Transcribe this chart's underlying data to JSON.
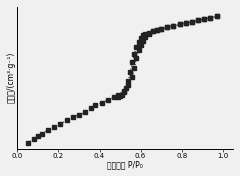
{
  "xlabel": "相对压力 P/P₀",
  "ylabel": "吸附量/(cm³·g⁻¹)",
  "xlim": [
    0.0,
    1.05
  ],
  "ylim": [
    0.0,
    1.05
  ],
  "xticks": [
    0.0,
    0.2,
    0.4,
    0.6,
    0.8,
    1.0
  ],
  "xtick_labels": [
    "0.0",
    "0.2",
    "0.4",
    "0.6",
    "0.8",
    "1.0"
  ],
  "adsorption_x": [
    0.05,
    0.08,
    0.1,
    0.12,
    0.15,
    0.18,
    0.21,
    0.24,
    0.27,
    0.3,
    0.33,
    0.36,
    0.38,
    0.41,
    0.44,
    0.47,
    0.49,
    0.52,
    0.54,
    0.56,
    0.57,
    0.58,
    0.59,
    0.6,
    0.61,
    0.62,
    0.64,
    0.66,
    0.68,
    0.7,
    0.73,
    0.76,
    0.79,
    0.82,
    0.85,
    0.88,
    0.91,
    0.94,
    0.97
  ],
  "adsorption_y": [
    0.04,
    0.07,
    0.09,
    0.11,
    0.14,
    0.16,
    0.18,
    0.21,
    0.23,
    0.25,
    0.27,
    0.3,
    0.32,
    0.34,
    0.36,
    0.38,
    0.4,
    0.43,
    0.47,
    0.53,
    0.6,
    0.67,
    0.73,
    0.77,
    0.8,
    0.83,
    0.85,
    0.87,
    0.88,
    0.89,
    0.9,
    0.91,
    0.92,
    0.93,
    0.94,
    0.95,
    0.96,
    0.97,
    0.98
  ],
  "desorption_x": [
    0.97,
    0.94,
    0.91,
    0.88,
    0.85,
    0.82,
    0.79,
    0.76,
    0.73,
    0.7,
    0.68,
    0.66,
    0.64,
    0.62,
    0.61,
    0.6,
    0.59,
    0.58,
    0.57,
    0.56,
    0.55,
    0.54,
    0.53,
    0.52,
    0.51,
    0.5,
    0.49
  ],
  "desorption_y": [
    0.98,
    0.97,
    0.96,
    0.95,
    0.94,
    0.93,
    0.92,
    0.91,
    0.9,
    0.89,
    0.88,
    0.87,
    0.86,
    0.85,
    0.84,
    0.82,
    0.79,
    0.75,
    0.7,
    0.64,
    0.57,
    0.5,
    0.45,
    0.42,
    0.4,
    0.39,
    0.38
  ],
  "marker": "s",
  "markersize": 2.5,
  "linestyle": ":",
  "linewidth": 0.8,
  "color": "#222222",
  "bg_color": "#f0f0f0",
  "label_fontsize": 5.5,
  "tick_fontsize": 5.0
}
